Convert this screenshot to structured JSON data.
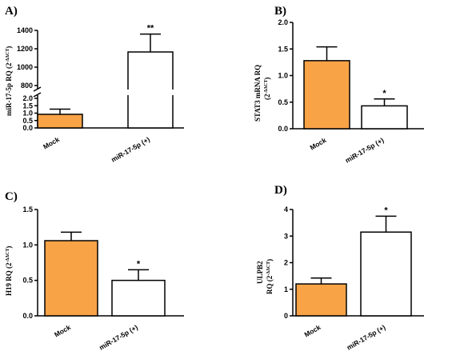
{
  "colors": {
    "mock": "#f9a347",
    "treated": "#ffffff",
    "stroke": "#000000"
  },
  "chart_data": [
    {
      "panel": "A)",
      "type": "bar",
      "ylabel": "miR-17-5p RQ (2",
      "ylabel_sup": "-ΔΔCT",
      "ylabel_close": ")",
      "categories": [
        "Mock",
        "miR-17-5p (+)"
      ],
      "values": [
        0.92,
        1165
      ],
      "errors": [
        0.35,
        195
      ],
      "significance": [
        "",
        "**"
      ],
      "y_axis_break": true,
      "ylim_lower": [
        0,
        2.0
      ],
      "ylim_upper": [
        800,
        1400
      ],
      "yticks_lower": [
        "0.0",
        "0.5",
        "1.0",
        "1.5",
        "2.0"
      ],
      "yticks_upper": [
        "800",
        "1000",
        "1200",
        "1400"
      ]
    },
    {
      "panel": "B)",
      "type": "bar",
      "ylabel": "STAT3 mRNA RQ",
      "ylabel2": "(2",
      "ylabel_sup": "-ΔΔCT",
      "ylabel_close": ")",
      "categories": [
        "Mock",
        "miR-17-5p (+)"
      ],
      "values": [
        1.28,
        0.43
      ],
      "errors": [
        0.26,
        0.13
      ],
      "significance": [
        "",
        "*"
      ],
      "ylim": [
        0,
        2.0
      ],
      "yticks": [
        "0.0",
        "0.5",
        "1.0",
        "1.5",
        "2.0"
      ]
    },
    {
      "panel": "C)",
      "type": "bar",
      "ylabel": "H19 RQ (2",
      "ylabel_sup": "-ΔΔCT",
      "ylabel_close": ")",
      "categories": [
        "Mock",
        "miR-17-5p (+)"
      ],
      "values": [
        1.06,
        0.5
      ],
      "errors": [
        0.12,
        0.15
      ],
      "significance": [
        "",
        "*"
      ],
      "ylim": [
        0,
        1.5
      ],
      "yticks": [
        "0.0",
        "0.5",
        "1.0",
        "1.5"
      ]
    },
    {
      "panel": "D)",
      "type": "bar",
      "ylabel": "ULPB2",
      "ylabel2": "RQ (2",
      "ylabel_sup": "-ΔΔCT",
      "ylabel_close": ")",
      "categories": [
        "Mock",
        "miR-17-5p (+)"
      ],
      "values": [
        1.2,
        3.15
      ],
      "errors": [
        0.22,
        0.6
      ],
      "significance": [
        "",
        "*"
      ],
      "ylim": [
        0,
        4
      ],
      "yticks": [
        "0",
        "1",
        "2",
        "3",
        "4"
      ]
    }
  ]
}
